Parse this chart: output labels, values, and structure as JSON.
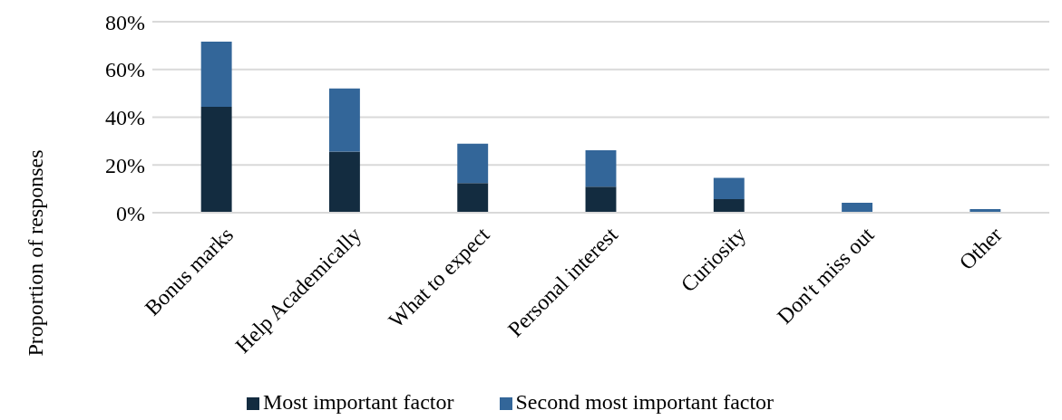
{
  "chart_data": {
    "type": "bar",
    "stacked": true,
    "ylabel": "Proportion of responses",
    "categories": [
      "Bonus marks",
      "Help Academically",
      "What to expect",
      "Personal interest",
      "Curiosity",
      "Don't miss out",
      "Other"
    ],
    "series": [
      {
        "name": "Most important factor",
        "color": "#132c40",
        "values": [
          44.4,
          25.6,
          12.4,
          10.9,
          5.7,
          0,
          0
        ]
      },
      {
        "name": "Second most important factor",
        "color": "#336699",
        "values": [
          27.3,
          26.4,
          16.5,
          15.3,
          8.9,
          4.2,
          1.5
        ]
      }
    ],
    "ylim": [
      0,
      80
    ],
    "yticks": [
      {
        "value": 0,
        "label": "0%"
      },
      {
        "value": 20,
        "label": "20%"
      },
      {
        "value": 40,
        "label": "40%"
      },
      {
        "value": 60,
        "label": "60%"
      },
      {
        "value": 80,
        "label": "80%"
      }
    ],
    "grid": "y",
    "legend": "bottom"
  }
}
